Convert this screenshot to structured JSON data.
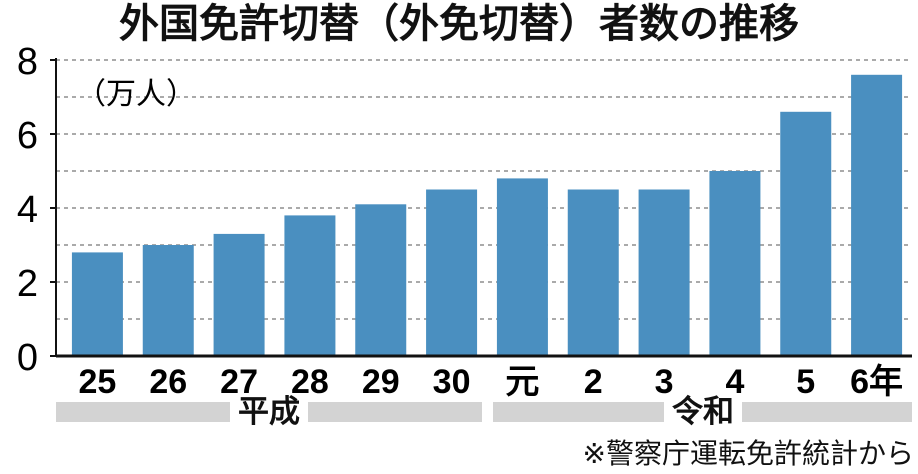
{
  "title": "外国免許切替（外免切替）者数の推移",
  "source_note": "※警察庁運転免許統計から",
  "colors": {
    "bar": "#4a8fc0",
    "grid": "#777777",
    "axis": "#111111",
    "era_band": "#d3d3d3"
  },
  "eras": [
    {
      "label": "平成"
    },
    {
      "label": "令和"
    }
  ],
  "chart_data": {
    "type": "bar",
    "title": "外国免許切替（外免切替）者数の推移",
    "unit_label": "（万人）",
    "categories": [
      "25",
      "26",
      "27",
      "28",
      "29",
      "30",
      "元",
      "2",
      "3",
      "4",
      "5",
      "6年"
    ],
    "series": [
      {
        "values": [
          2.8,
          3.0,
          3.3,
          3.8,
          4.1,
          4.5,
          4.8,
          4.5,
          4.5,
          5.0,
          6.6,
          7.6
        ]
      }
    ],
    "y_ticks": [
      "0",
      "2",
      "4",
      "6",
      "8"
    ],
    "ylim": [
      0,
      8
    ],
    "grid": true,
    "grid_step": 1
  }
}
